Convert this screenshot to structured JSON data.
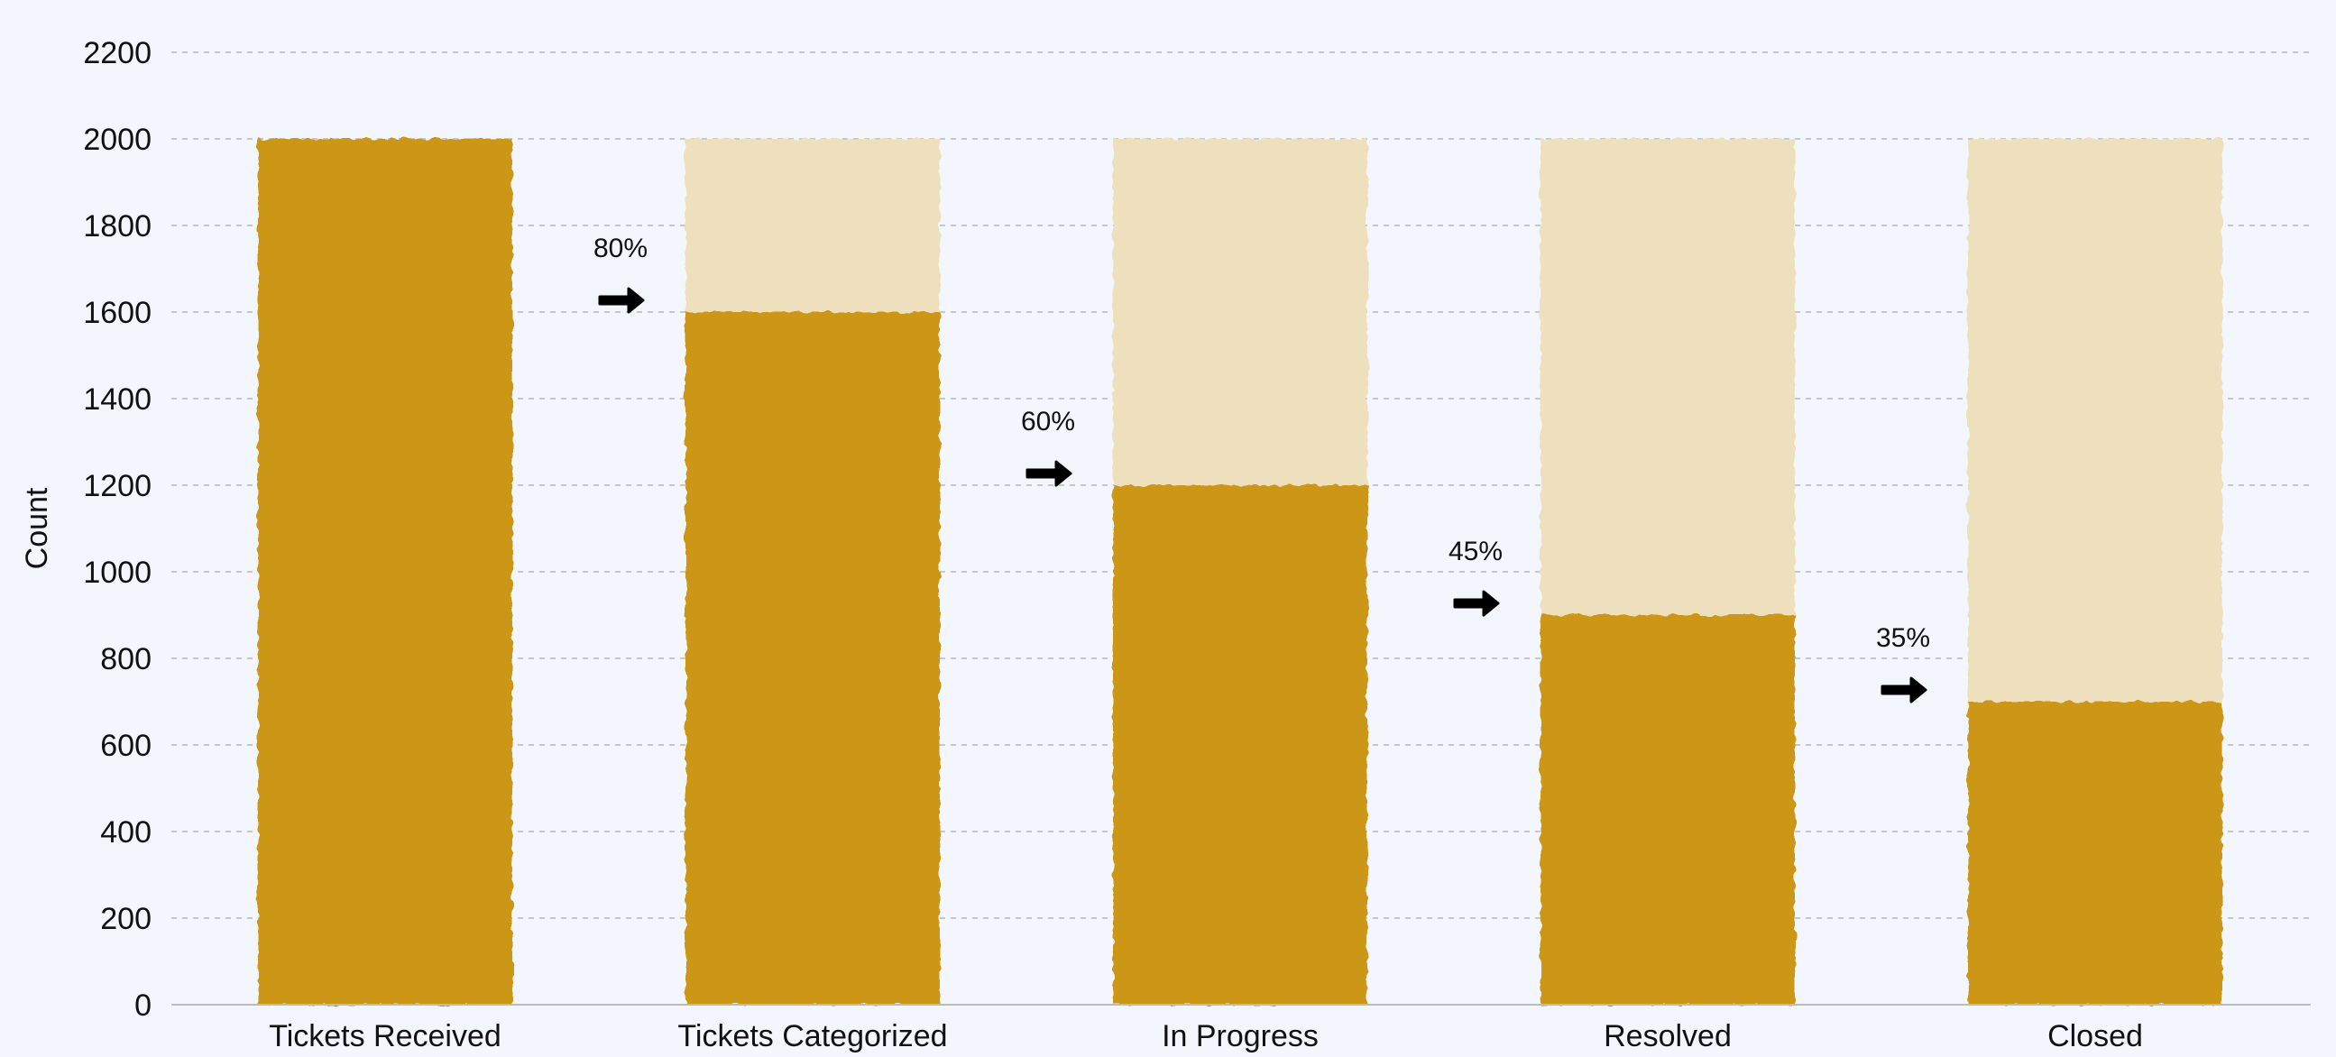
{
  "chart_data": {
    "type": "bar",
    "categories": [
      "Tickets Received",
      "Tickets Categorized",
      "In Progress",
      "Resolved",
      "Closed"
    ],
    "values": [
      2000,
      1600,
      1200,
      900,
      700
    ],
    "max_value": 2000,
    "conversion_labels": [
      "80%",
      "60%",
      "45%",
      "35%"
    ],
    "ylabel": "Count",
    "xlabel": "",
    "ylim": [
      0,
      2200
    ],
    "yticks": [
      0,
      200,
      400,
      600,
      800,
      1000,
      1200,
      1400,
      1600,
      1800,
      2000,
      2200
    ],
    "grid": true,
    "colors": {
      "bar": "#cc9614",
      "bar_background": "#eedfbd",
      "grid": "#c8c8c8",
      "arrow": "#000000",
      "axis": "#bbbbbb"
    }
  }
}
